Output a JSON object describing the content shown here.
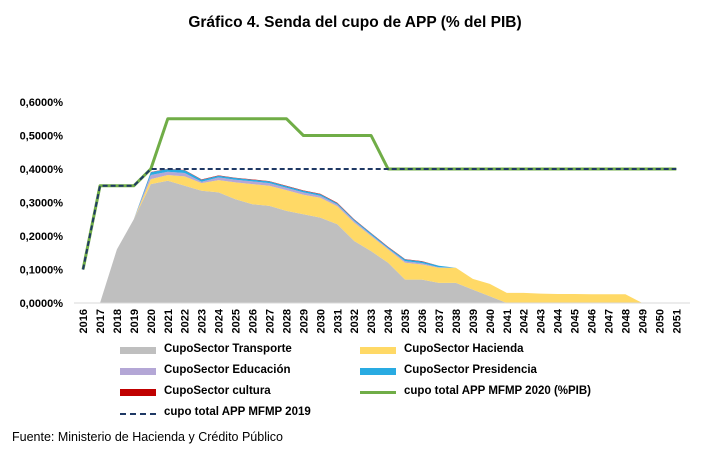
{
  "title": "Gráfico 4. Senda del cupo de APP (% del PIB)",
  "source": "Fuente: Ministerio de Hacienda y Crédito Público",
  "chart_data": {
    "type": "area",
    "x": [
      "2016",
      "2017",
      "2018",
      "2019",
      "2020",
      "2021",
      "2022",
      "2023",
      "2024",
      "2025",
      "2026",
      "2027",
      "2028",
      "2029",
      "2030",
      "2031",
      "2032",
      "2033",
      "2034",
      "2035",
      "2036",
      "2037",
      "2038",
      "2039",
      "2040",
      "2041",
      "2042",
      "2043",
      "2044",
      "2045",
      "2046",
      "2047",
      "2048",
      "2049",
      "2050",
      "2051"
    ],
    "ylim": [
      0,
      0.6
    ],
    "y_ticks": [
      "0,0000%",
      "0,1000%",
      "0,2000%",
      "0,3000%",
      "0,4000%",
      "0,5000%",
      "0,6000%"
    ],
    "grid": false,
    "legend_position": "bottom",
    "stacked_series": [
      {
        "name": "CupoSector Transporte",
        "color": "#bfbfbf",
        "values": [
          0,
          0,
          0.16,
          0.25,
          0.355,
          0.365,
          0.35,
          0.335,
          0.33,
          0.31,
          0.295,
          0.29,
          0.275,
          0.265,
          0.255,
          0.235,
          0.185,
          0.155,
          0.12,
          0.07,
          0.07,
          0.06,
          0.06,
          0.04,
          0.02,
          0,
          0,
          0,
          0,
          0,
          0,
          0,
          0,
          0,
          0,
          0
        ]
      },
      {
        "name": "CupoSector Hacienda",
        "color": "#ffd966",
        "values": [
          0,
          0,
          0,
          0,
          0.015,
          0.017,
          0.028,
          0.023,
          0.037,
          0.05,
          0.06,
          0.06,
          0.062,
          0.058,
          0.059,
          0.054,
          0.055,
          0.045,
          0.04,
          0.05,
          0.045,
          0.045,
          0.045,
          0.032,
          0.037,
          0.03,
          0.03,
          0.028,
          0.027,
          0.027,
          0.026,
          0.026,
          0.026,
          0,
          0,
          0
        ]
      },
      {
        "name": "CupoSector Educación",
        "color": "#b4a7d6",
        "values": [
          0,
          0,
          0,
          0,
          0.012,
          0.01,
          0.01,
          0.004,
          0.008,
          0.008,
          0.008,
          0.008,
          0.007,
          0.007,
          0.006,
          0.005,
          0.005,
          0.004,
          0.003,
          0.005,
          0.004,
          0.002,
          0,
          0,
          0,
          0,
          0,
          0,
          0,
          0,
          0,
          0,
          0,
          0,
          0,
          0
        ]
      },
      {
        "name": "CupoSector Presidencia",
        "color": "#29abe2",
        "values": [
          0,
          0,
          0,
          0,
          0.008,
          0.008,
          0.008,
          0.006,
          0.005,
          0.005,
          0.005,
          0.005,
          0.005,
          0.005,
          0.005,
          0.004,
          0.004,
          0.004,
          0.004,
          0.005,
          0.005,
          0.004,
          0,
          0,
          0,
          0,
          0,
          0,
          0,
          0,
          0,
          0,
          0,
          0,
          0,
          0
        ]
      },
      {
        "name": "CupoSector cultura",
        "color": "#c00000",
        "values": [
          0,
          0,
          0,
          0,
          0.001,
          0.001,
          0.001,
          0.001,
          0.001,
          0.001,
          0.001,
          0.001,
          0.001,
          0.001,
          0.001,
          0.001,
          0.001,
          0.001,
          0.001,
          0.001,
          0.001,
          0,
          0,
          0,
          0,
          0,
          0,
          0,
          0,
          0,
          0,
          0,
          0,
          0,
          0,
          0
        ]
      }
    ],
    "lines": [
      {
        "name": "cupo total APP MFMP 2020 (%PIB)",
        "color": "#70ad47",
        "style": "solid",
        "values": [
          0.1,
          0.35,
          0.35,
          0.35,
          0.4,
          0.55,
          0.55,
          0.55,
          0.55,
          0.55,
          0.55,
          0.55,
          0.55,
          0.5,
          0.5,
          0.5,
          0.5,
          0.5,
          0.4,
          0.4,
          0.4,
          0.4,
          0.4,
          0.4,
          0.4,
          0.4,
          0.4,
          0.4,
          0.4,
          0.4,
          0.4,
          0.4,
          0.4,
          0.4,
          0.4,
          0.4
        ]
      },
      {
        "name": "cupo total APP MFMP 2019",
        "color": "#1f3864",
        "style": "dashed",
        "values": [
          0.1,
          0.35,
          0.35,
          0.35,
          0.4,
          0.4,
          0.4,
          0.4,
          0.4,
          0.4,
          0.4,
          0.4,
          0.4,
          0.4,
          0.4,
          0.4,
          0.4,
          0.4,
          0.4,
          0.4,
          0.4,
          0.4,
          0.4,
          0.4,
          0.4,
          0.4,
          0.4,
          0.4,
          0.4,
          0.4,
          0.4,
          0.4,
          0.4,
          0.4,
          0.4,
          0.4
        ]
      }
    ],
    "legend": [
      {
        "label": "CupoSector Transporte",
        "kind": "area",
        "color": "#bfbfbf"
      },
      {
        "label": "CupoSector Hacienda",
        "kind": "area",
        "color": "#ffd966"
      },
      {
        "label": "CupoSector Educación",
        "kind": "area",
        "color": "#b4a7d6"
      },
      {
        "label": "CupoSector Presidencia",
        "kind": "area",
        "color": "#29abe2"
      },
      {
        "label": "CupoSector cultura",
        "kind": "area",
        "color": "#c00000"
      },
      {
        "label": "cupo total APP MFMP 2020 (%PIB)",
        "kind": "line",
        "color": "#70ad47"
      },
      {
        "label": "cupo total APP MFMP 2019",
        "kind": "dashed",
        "color": "#1f3864"
      }
    ]
  }
}
